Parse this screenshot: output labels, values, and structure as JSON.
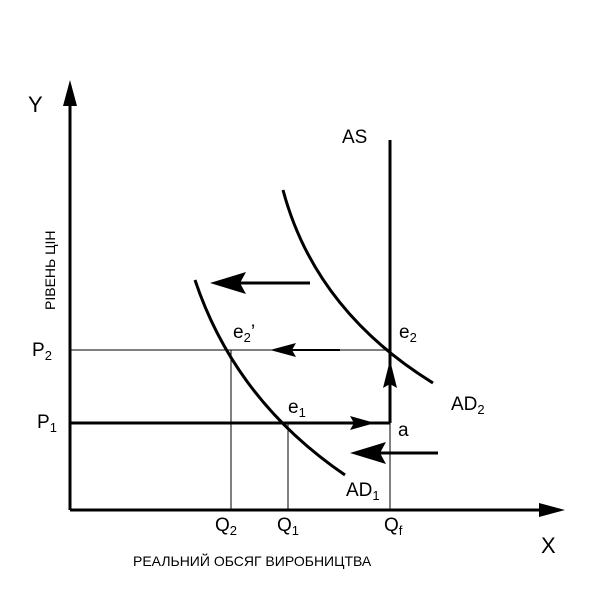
{
  "axes": {
    "y_name": "Y",
    "x_name": "X",
    "y_title": "РІВЕНЬ ЦІН",
    "x_title": "РЕАЛЬНИЙ ОБСЯГ ВИРОБНИЦТВА"
  },
  "price_levels": {
    "p1": {
      "main": "P",
      "sub": "1"
    },
    "p2": {
      "main": "P",
      "sub": "2"
    }
  },
  "quantities": {
    "q1": {
      "main": "Q",
      "sub": "1"
    },
    "q2": {
      "main": "Q",
      "sub": "2"
    },
    "qf": {
      "main": "Q",
      "sub": "f"
    }
  },
  "curves": {
    "as": "AS",
    "ad1": {
      "main": "AD",
      "sub": "1"
    },
    "ad2": {
      "main": "AD",
      "sub": "2"
    }
  },
  "points": {
    "e1": {
      "main": "e",
      "sub": "1"
    },
    "e2": {
      "main": "e",
      "sub": "2"
    },
    "e2_prime": {
      "main": "e",
      "sub": "2",
      "prime": "’"
    },
    "a": "a"
  }
}
